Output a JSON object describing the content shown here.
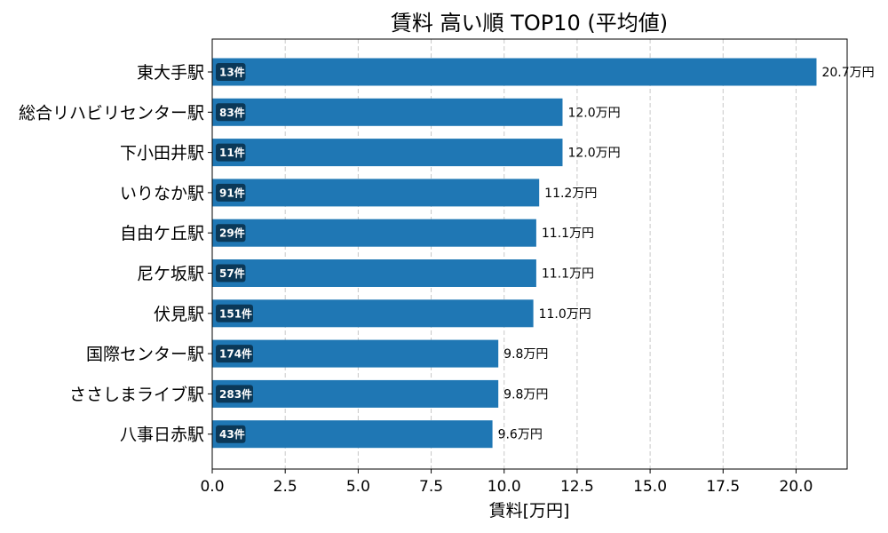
{
  "chart_data": {
    "type": "bar",
    "orientation": "horizontal",
    "title": "賃料 高い順 TOP10 (平均値)",
    "xlabel": "賃料[万円]",
    "ylabel": "",
    "xlim": [
      0,
      21.75
    ],
    "xticks": [
      "0.0",
      "2.5",
      "5.0",
      "7.5",
      "10.0",
      "12.5",
      "15.0",
      "17.5",
      "20.0"
    ],
    "grid": "x-dashed",
    "bar_color": "#1f77b4",
    "count_badge_color": "#0b3857",
    "categories": [
      "東大手駅",
      "総合リハビリセンター駅",
      "下小田井駅",
      "いりなか駅",
      "自由ケ丘駅",
      "尼ケ坂駅",
      "伏見駅",
      "国際センター駅",
      "ささしまライブ駅",
      "八事日赤駅"
    ],
    "values": [
      20.7,
      12.0,
      12.0,
      11.2,
      11.1,
      11.1,
      11.0,
      9.8,
      9.8,
      9.6
    ],
    "value_labels": [
      "20.7万円",
      "12.0万円",
      "12.0万円",
      "11.2万円",
      "11.1万円",
      "11.1万円",
      "11.0万円",
      "9.8万円",
      "9.8万円",
      "9.6万円"
    ],
    "counts": [
      "13件",
      "83件",
      "11件",
      "91件",
      "29件",
      "57件",
      "151件",
      "174件",
      "283件",
      "43件"
    ]
  }
}
